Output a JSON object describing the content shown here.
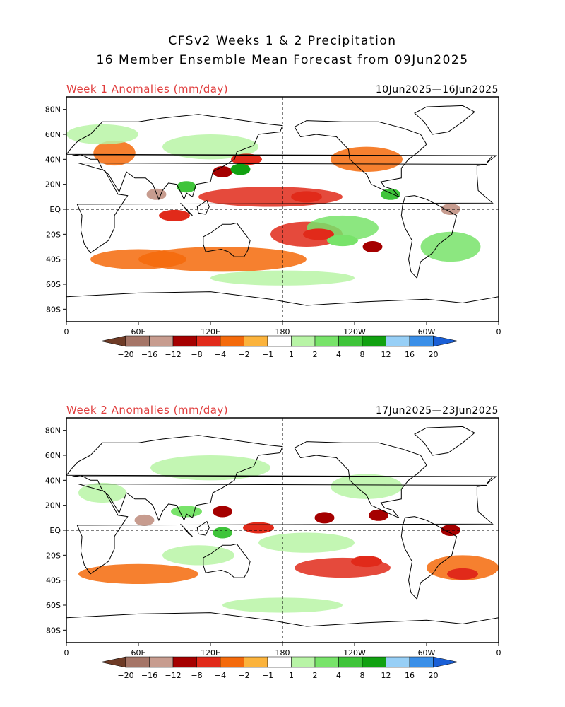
{
  "header": {
    "title_line1": "CFSv2 Weeks 1 & 2 Precipitation",
    "title_line2": "16 Member Ensemble Mean Forecast from 09Jun2025"
  },
  "panels": [
    {
      "title": "Week 1 Anomalies (mm/day)",
      "date_range": "10Jun2025—16Jun2025"
    },
    {
      "title": "Week 2 Anomalies (mm/day)",
      "date_range": "17Jun2025—23Jun2025"
    }
  ],
  "chart_data": [
    {
      "type": "heatmap",
      "title": "Week 1 Anomalies (mm/day)",
      "date_range": "10Jun2025—16Jun2025",
      "x_tick_labels": [
        "0",
        "60E",
        "120E",
        "180",
        "120W",
        "60W",
        "0"
      ],
      "x_tick_lon": [
        0,
        60,
        120,
        180,
        240,
        300,
        360
      ],
      "y_tick_labels": [
        "80N",
        "60N",
        "40N",
        "20N",
        "EQ",
        "20S",
        "40S",
        "60S",
        "80S"
      ],
      "y_tick_lat": [
        80,
        60,
        40,
        20,
        0,
        -20,
        -40,
        -60,
        -80
      ],
      "xlim": [
        0,
        360
      ],
      "ylim": [
        -90,
        90
      ],
      "reference_lines": [
        "EQ",
        "180"
      ],
      "anomaly_features": [
        {
          "lon": 75,
          "lat": 12,
          "value": -14
        },
        {
          "lon": 130,
          "lat": 30,
          "value": -8
        },
        {
          "lon": 150,
          "lat": 40,
          "value": -4
        },
        {
          "lon": 100,
          "lat": 18,
          "value": 8
        },
        {
          "lon": 145,
          "lat": 32,
          "value": 12
        },
        {
          "lon": 200,
          "lat": 10,
          "value": -4
        },
        {
          "lon": 210,
          "lat": -20,
          "value": -4
        },
        {
          "lon": 255,
          "lat": -30,
          "value": -8
        },
        {
          "lon": 270,
          "lat": 12,
          "value": 8
        },
        {
          "lon": 320,
          "lat": 0,
          "value": -14
        },
        {
          "lon": 90,
          "lat": -5,
          "value": -4
        },
        {
          "lon": 230,
          "lat": -25,
          "value": 4
        }
      ]
    },
    {
      "type": "heatmap",
      "title": "Week 2 Anomalies (mm/day)",
      "date_range": "17Jun2025—23Jun2025",
      "x_tick_labels": [
        "0",
        "60E",
        "120E",
        "180",
        "120W",
        "60W",
        "0"
      ],
      "x_tick_lon": [
        0,
        60,
        120,
        180,
        240,
        300,
        360
      ],
      "y_tick_labels": [
        "80N",
        "60N",
        "40N",
        "20N",
        "EQ",
        "20S",
        "40S",
        "60S",
        "80S"
      ],
      "y_tick_lat": [
        80,
        60,
        40,
        20,
        0,
        -20,
        -40,
        -60,
        -80
      ],
      "xlim": [
        0,
        360
      ],
      "ylim": [
        -90,
        90
      ],
      "reference_lines": [
        "EQ",
        "180"
      ],
      "anomaly_features": [
        {
          "lon": 65,
          "lat": 8,
          "value": -12
        },
        {
          "lon": 130,
          "lat": 15,
          "value": -8
        },
        {
          "lon": 160,
          "lat": 2,
          "value": -4
        },
        {
          "lon": 215,
          "lat": 10,
          "value": -8
        },
        {
          "lon": 260,
          "lat": 12,
          "value": -8
        },
        {
          "lon": 320,
          "lat": 0,
          "value": -8
        },
        {
          "lon": 100,
          "lat": 15,
          "value": 4
        },
        {
          "lon": 250,
          "lat": -25,
          "value": -4
        },
        {
          "lon": 330,
          "lat": -35,
          "value": -4
        },
        {
          "lon": 130,
          "lat": -2,
          "value": 8
        }
      ]
    }
  ],
  "colorbar": {
    "labels": [
      "−20",
      "−16",
      "−12",
      "−8",
      "−4",
      "−2",
      "−1",
      "1",
      "2",
      "4",
      "8",
      "12",
      "16",
      "20"
    ],
    "colors": [
      "#6e3b26",
      "#a57567",
      "#c79c8f",
      "#a50000",
      "#e12a1a",
      "#f46a0b",
      "#fbb33c",
      "#ffffff",
      "#b8f4a6",
      "#78e36a",
      "#3fc43a",
      "#11a111",
      "#97cff6",
      "#3a8fe8",
      "#1a5fd6"
    ]
  }
}
